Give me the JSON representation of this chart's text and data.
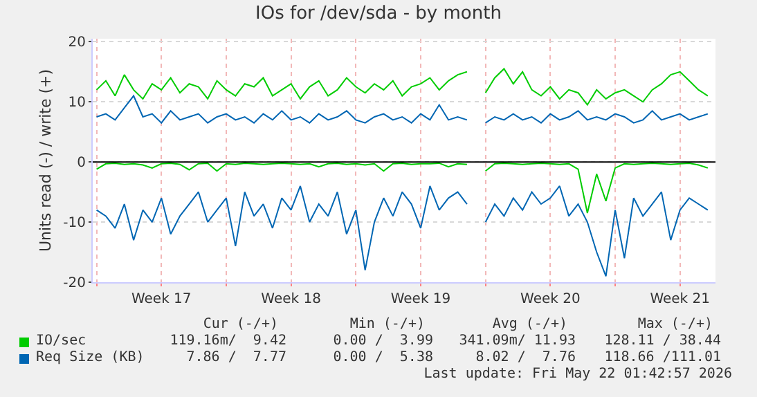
{
  "chart_data": {
    "type": "line",
    "title": "IOs for /dev/sda - by month",
    "ylabel": "Units read (-) / write (+)",
    "x": [
      "2026-04-20T00:00",
      "2026-04-20T12:00",
      "2026-04-21T00:00",
      "2026-04-21T12:00",
      "2026-04-22T00:00",
      "2026-04-22T12:00",
      "2026-04-23T00:00",
      "2026-04-23T12:00",
      "2026-04-24T00:00",
      "2026-04-24T12:00",
      "2026-04-25T00:00",
      "2026-04-25T12:00",
      "2026-04-26T00:00",
      "2026-04-26T12:00",
      "2026-04-27T00:00",
      "2026-04-27T12:00",
      "2026-04-28T00:00",
      "2026-04-28T12:00",
      "2026-04-29T00:00",
      "2026-04-29T12:00",
      "2026-04-30T00:00",
      "2026-04-30T12:00",
      "2026-05-01T00:00",
      "2026-05-01T12:00",
      "2026-05-02T00:00",
      "2026-05-02T12:00",
      "2026-05-03T00:00",
      "2026-05-03T12:00",
      "2026-05-04T00:00",
      "2026-05-04T12:00",
      "2026-05-05T00:00",
      "2026-05-05T12:00",
      "2026-05-06T00:00",
      "2026-05-06T12:00",
      "2026-05-07T00:00",
      "2026-05-07T12:00",
      "2026-05-08T00:00",
      "2026-05-08T12:00",
      "2026-05-09T00:00",
      "2026-05-09T12:00",
      "2026-05-10T00:00",
      "2026-05-10T12:00",
      "2026-05-11T00:00",
      "2026-05-11T12:00",
      "2026-05-12T00:00",
      "2026-05-12T12:00",
      "2026-05-13T00:00",
      "2026-05-13T12:00",
      "2026-05-14T00:00",
      "2026-05-14T12:00",
      "2026-05-15T00:00",
      "2026-05-15T12:00",
      "2026-05-16T00:00",
      "2026-05-16T12:00",
      "2026-05-17T00:00",
      "2026-05-17T12:00",
      "2026-05-18T00:00",
      "2026-05-18T12:00",
      "2026-05-19T00:00",
      "2026-05-19T12:00",
      "2026-05-20T00:00",
      "2026-05-20T12:00",
      "2026-05-21T00:00",
      "2026-05-21T12:00",
      "2026-05-22T00:00",
      "2026-05-22T12:00",
      "2026-05-23T00:00"
    ],
    "xlim": [
      "2026-04-19T19:00",
      "2026-05-23T10:00"
    ],
    "xticks": [
      {
        "value": "2026-04-20T00:00",
        "label": null
      },
      {
        "value": "2026-04-23T12:00",
        "label": "Week 17"
      },
      {
        "value": "2026-04-27T00:00",
        "label": null
      },
      {
        "value": "2026-04-30T12:00",
        "label": "Week 18"
      },
      {
        "value": "2026-05-04T00:00",
        "label": null
      },
      {
        "value": "2026-05-07T12:00",
        "label": "Week 19"
      },
      {
        "value": "2026-05-11T00:00",
        "label": null
      },
      {
        "value": "2026-05-14T12:00",
        "label": "Week 20"
      },
      {
        "value": "2026-05-18T00:00",
        "label": null
      },
      {
        "value": "2026-05-21T12:00",
        "label": "Week 21"
      }
    ],
    "ylim": [
      -20,
      20.5
    ],
    "yticks": [
      -20,
      -10,
      0,
      10,
      20
    ],
    "grid": true,
    "legend": "bottom",
    "ref_lines": [
      {
        "axis": "y",
        "value": 0,
        "color": "#000000"
      }
    ],
    "series": [
      {
        "name": "IO/sec",
        "color": "#00cc00",
        "values": [
          12,
          13.5,
          11,
          14.5,
          12,
          10.5,
          13,
          12,
          14,
          11.5,
          13,
          12.5,
          10.5,
          13.5,
          12,
          11,
          13,
          12.5,
          14,
          11,
          12,
          13,
          10.5,
          12.5,
          13.5,
          11,
          12,
          14,
          12.5,
          11.5,
          13,
          12,
          13.5,
          11,
          12.5,
          13,
          14,
          12,
          13.5,
          14.5,
          15,
          null,
          11.5,
          14,
          15.5,
          13,
          15,
          12,
          11,
          12.5,
          10.5,
          12,
          11.5,
          9.5,
          12,
          10.5,
          11.5,
          12,
          11,
          10,
          12,
          13,
          14.5,
          15,
          13.5,
          12,
          11
        ]
      },
      {
        "name": "Req Size (KB)",
        "color": "#0066b3",
        "values": [
          7.5,
          8,
          7,
          9,
          11,
          7.5,
          8,
          6.5,
          8.5,
          7,
          7.5,
          8,
          6.5,
          7.5,
          8,
          7,
          7.5,
          6.5,
          8,
          7,
          8.5,
          7,
          7.5,
          6.5,
          8,
          7,
          7.5,
          8.5,
          7,
          6.5,
          7.5,
          8,
          7,
          7.5,
          6.5,
          8,
          7,
          9.5,
          7,
          7.5,
          7,
          null,
          6.5,
          7.5,
          7,
          8,
          7,
          7.5,
          6.5,
          8,
          7,
          7.5,
          8.5,
          7,
          7.5,
          7,
          8,
          7.5,
          6.5,
          7,
          8.5,
          7,
          7.5,
          8,
          7,
          7.5,
          8
        ]
      },
      {
        "color": "#00cc00",
        "values": [
          -1.2,
          -0.3,
          -0.2,
          -0.4,
          -0.3,
          -0.5,
          -1,
          -0.3,
          -0.2,
          -0.4,
          -1.3,
          -0.3,
          -0.2,
          -1.5,
          -0.3,
          -0.4,
          -0.2,
          -0.3,
          -0.4,
          -0.3,
          -0.2,
          -0.3,
          -0.4,
          -0.3,
          -0.8,
          -0.3,
          -0.2,
          -0.4,
          -0.3,
          -0.5,
          -0.3,
          -1.5,
          -0.3,
          -0.2,
          -0.4,
          -0.3,
          -0.3,
          -0.2,
          -0.8,
          -0.3,
          -0.4,
          null,
          -1.5,
          -0.3,
          -0.2,
          -0.3,
          -0.4,
          -0.3,
          -0.2,
          -0.3,
          -0.4,
          -0.3,
          -1.2,
          -8.5,
          -2,
          -6.5,
          -1,
          -0.3,
          -0.4,
          -0.3,
          -0.2,
          -0.3,
          -0.4,
          -0.3,
          -0.2,
          -0.5,
          -1
        ]
      },
      {
        "color": "#0066b3",
        "values": [
          -8,
          -9,
          -11,
          -7,
          -13,
          -8,
          -10,
          -6,
          -12,
          -9,
          -7,
          -5,
          -10,
          -8,
          -6,
          -14,
          -5,
          -9,
          -7,
          -11,
          -6,
          -8,
          -4,
          -10,
          -7,
          -9,
          -5,
          -12,
          -8,
          -18,
          -10,
          -6,
          -9,
          -5,
          -7,
          -11,
          -4,
          -8,
          -6,
          -5,
          -7,
          null,
          -10,
          -7,
          -9,
          -6,
          -8,
          -5,
          -7,
          -6,
          -4,
          -9,
          -7,
          -10,
          -15,
          -19,
          -8,
          -16,
          -6,
          -9,
          -7,
          -5,
          -13,
          -8,
          -6,
          -7,
          -8
        ]
      }
    ],
    "annotations": [
      "Cur (-/+)",
      "Min (-/+)",
      "Avg (-/+)",
      "Max (-/+)",
      "119.16m/  9.42",
      "0.00 /  3.99",
      "341.09m/ 11.93",
      "128.11 / 38.44",
      "7.86 /  7.77",
      "0.00 /  5.38",
      "8.02 /  7.76",
      "118.66 /111.01",
      "Last update: Fri May 22 01:42:57 2026"
    ]
  }
}
